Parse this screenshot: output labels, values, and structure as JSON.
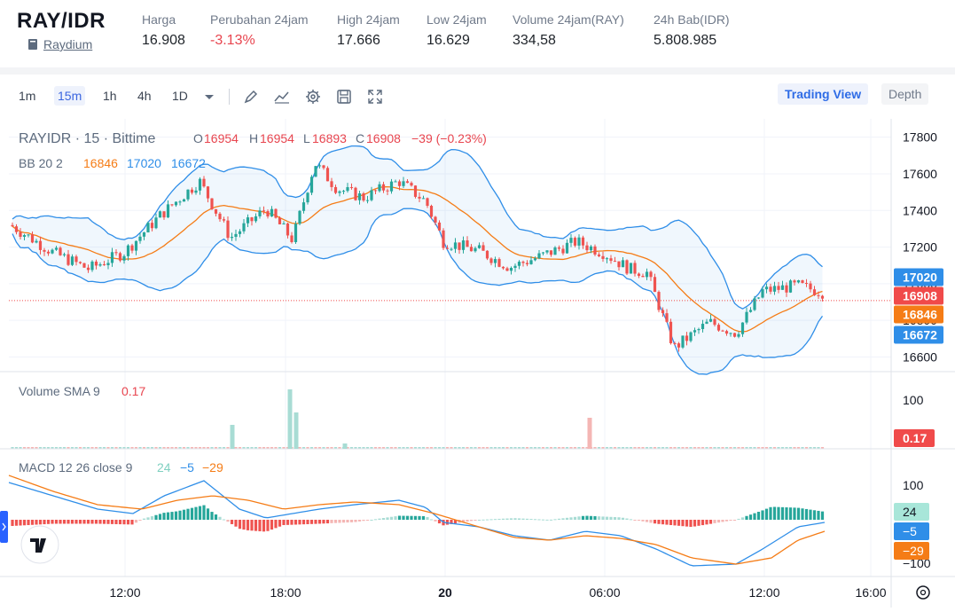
{
  "header": {
    "pair": "RAY/IDR",
    "exchange": "Raydium",
    "stats": [
      {
        "label": "Harga",
        "value": "16.908",
        "negative": false
      },
      {
        "label": "Perubahan 24jam",
        "value": "-3.13%",
        "negative": true
      },
      {
        "label": "High 24jam",
        "value": "17.666",
        "negative": false
      },
      {
        "label": "Low 24jam",
        "value": "16.629",
        "negative": false
      },
      {
        "label": "Volume 24jam(RAY)",
        "value": "334,58",
        "negative": false
      },
      {
        "label": "24h Bab(IDR)",
        "value": "5.808.985",
        "negative": false
      }
    ]
  },
  "toolbar": {
    "intervals": [
      "1m",
      "15m",
      "1h",
      "4h",
      "1D"
    ],
    "active_interval": "15m",
    "icons": [
      "chevron-down-icon",
      "draw-icon",
      "indicator-icon",
      "settings-icon",
      "save-icon",
      "fullscreen-icon"
    ],
    "trading_view": "Trading View",
    "depth": "Depth"
  },
  "legend": {
    "symbol": "RAYIDR · 15 · Bittime",
    "o_label": "O",
    "o": "16954",
    "h_label": "H",
    "h": "16954",
    "l_label": "L",
    "l": "16893",
    "c_label": "C",
    "c": "16908",
    "change": "−39 (−0.23%)",
    "bb_label": "BB 20 2",
    "bb_mid": "16846",
    "bb_upper": "17020",
    "bb_lower": "16672",
    "vol_label": "Volume SMA 9",
    "vol_value": "0.17",
    "macd_label": "MACD 12 26 close 9",
    "macd_hist": "24",
    "macd_line": "−5",
    "macd_signal": "−29"
  },
  "price_axis": {
    "ticks": [
      "17800",
      "17600",
      "17400",
      "17200",
      "17000",
      "16800",
      "16600"
    ],
    "tags": [
      {
        "text": "17020",
        "color": "#2f8ee8"
      },
      {
        "text": "16908",
        "color": "#f04a4a"
      },
      {
        "text": "16846",
        "color": "#f57c16"
      },
      {
        "text": "16672",
        "color": "#2f8ee8"
      }
    ]
  },
  "volume_axis": {
    "ticks": [
      "100"
    ],
    "tag": "0.17"
  },
  "macd_axis": {
    "ticks": [
      "100",
      "−100"
    ],
    "tags": [
      "24",
      "−5",
      "−29"
    ]
  },
  "time_axis": [
    "12:00",
    "18:00",
    "20",
    "06:00",
    "12:00",
    "16:00"
  ],
  "colors": {
    "up": "#26a69a",
    "down": "#ef5350",
    "bb_band": "#2f8ee8",
    "bb_mid": "#f57c16",
    "macd_line": "#2f8ee8",
    "signal_line": "#f57c16",
    "accent": "#2e6ce6"
  },
  "chart_data": {
    "type": "candlestick",
    "interval": "15m",
    "ylim": [
      16520,
      17900
    ],
    "candles": []
  }
}
